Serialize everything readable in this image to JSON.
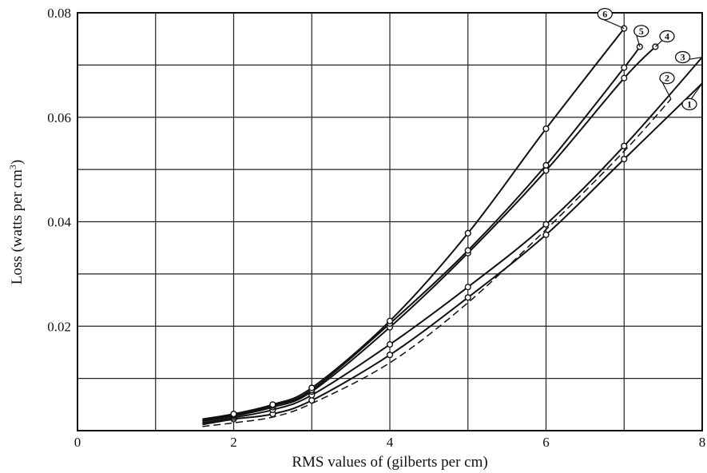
{
  "chart_data": {
    "type": "line",
    "xlabel": "RMS values of (gilberts per cm)",
    "ylabel_main": "Loss (watts per cm",
    "ylabel_sup": "3",
    "ylabel_close": ")",
    "xlim": [
      0,
      8
    ],
    "ylim": [
      0,
      0.08
    ],
    "x_ticks": [
      {
        "value": 0,
        "label": "0"
      },
      {
        "value": 2,
        "label": "2"
      },
      {
        "value": 4,
        "label": "4"
      },
      {
        "value": 6,
        "label": "6"
      },
      {
        "value": 8,
        "label": "8"
      }
    ],
    "y_ticks": [
      {
        "value": 0.02,
        "label": "0.02"
      },
      {
        "value": 0.04,
        "label": "0.04"
      },
      {
        "value": 0.06,
        "label": "0.06"
      },
      {
        "value": 0.08,
        "label": "0.08"
      }
    ],
    "grid": true,
    "grid_x_step": 1,
    "grid_y_step": 0.01,
    "series": [
      {
        "label": "1",
        "dashed": false,
        "x": [
          1.6,
          2,
          2.5,
          3,
          4,
          5,
          6,
          7,
          8
        ],
        "y": [
          0.0012,
          0.0022,
          0.0032,
          0.0058,
          0.0145,
          0.0255,
          0.0375,
          0.052,
          0.0665
        ]
      },
      {
        "label": "2",
        "dashed": true,
        "x": [
          1.6,
          2,
          2.5,
          3,
          4,
          5,
          6,
          7,
          7.6
        ],
        "y": [
          0.0008,
          0.0015,
          0.0026,
          0.0052,
          0.013,
          0.0245,
          0.0385,
          0.0535,
          0.0635
        ]
      },
      {
        "label": "3",
        "dashed": false,
        "x": [
          1.6,
          2,
          2.5,
          3,
          4,
          5,
          6,
          7,
          8
        ],
        "y": [
          0.0015,
          0.0025,
          0.004,
          0.0068,
          0.0165,
          0.0275,
          0.0395,
          0.0545,
          0.0715
        ]
      },
      {
        "label": "4",
        "dashed": false,
        "x": [
          1.6,
          2,
          2.5,
          3,
          4,
          5,
          6,
          7,
          7.4
        ],
        "y": [
          0.0018,
          0.0028,
          0.0045,
          0.0075,
          0.0198,
          0.034,
          0.0498,
          0.0675,
          0.0735
        ]
      },
      {
        "label": "5",
        "dashed": false,
        "x": [
          1.6,
          2,
          2.5,
          3,
          4,
          5,
          6,
          7,
          7.2
        ],
        "y": [
          0.002,
          0.003,
          0.0048,
          0.0078,
          0.0205,
          0.0345,
          0.0508,
          0.0695,
          0.0735
        ]
      },
      {
        "label": "6",
        "dashed": false,
        "x": [
          1.6,
          2,
          2.5,
          3,
          4,
          5,
          6,
          7
        ],
        "y": [
          0.0022,
          0.0032,
          0.005,
          0.0082,
          0.021,
          0.0378,
          0.0578,
          0.077
        ]
      }
    ]
  }
}
